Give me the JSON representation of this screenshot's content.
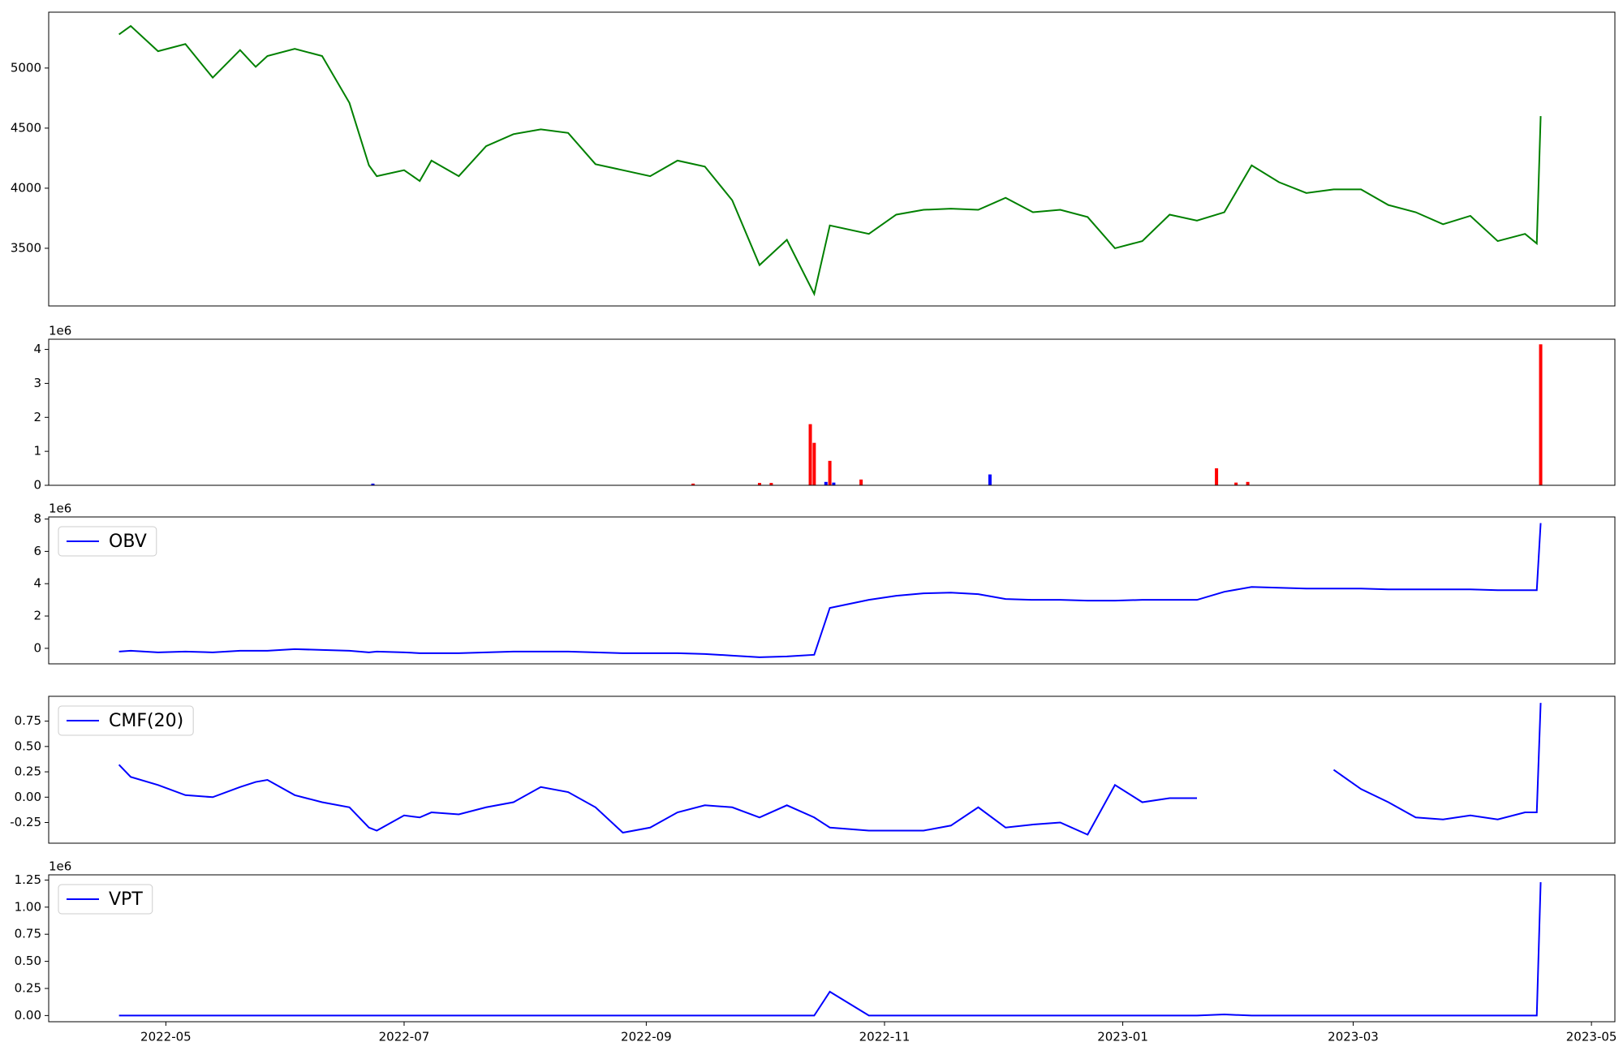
{
  "chart_data": [
    {
      "type": "line",
      "xlim": [
        "2022-04-01",
        "2023-05-07"
      ],
      "x": [
        "2022-04-19",
        "2022-04-22",
        "2022-04-29",
        "2022-05-06",
        "2022-05-13",
        "2022-05-20",
        "2022-05-24",
        "2022-05-27",
        "2022-06-03",
        "2022-06-10",
        "2022-06-17",
        "2022-06-22",
        "2022-06-24",
        "2022-07-01",
        "2022-07-05",
        "2022-07-08",
        "2022-07-15",
        "2022-07-22",
        "2022-07-29",
        "2022-08-05",
        "2022-08-12",
        "2022-08-19",
        "2022-08-26",
        "2022-09-02",
        "2022-09-09",
        "2022-09-16",
        "2022-09-23",
        "2022-09-30",
        "2022-10-07",
        "2022-10-14",
        "2022-10-18",
        "2022-10-28",
        "2022-11-04",
        "2022-11-11",
        "2022-11-18",
        "2022-11-25",
        "2022-12-02",
        "2022-12-09",
        "2022-12-16",
        "2022-12-23",
        "2022-12-30",
        "2023-01-06",
        "2023-01-13",
        "2023-01-20",
        "2023-01-27",
        "2023-02-03",
        "2023-02-10",
        "2023-02-17",
        "2023-02-24",
        "2023-03-03",
        "2023-03-10",
        "2023-03-17",
        "2023-03-24",
        "2023-03-31",
        "2023-04-07",
        "2023-04-14",
        "2023-04-17",
        "2023-04-18"
      ],
      "series": [
        {
          "color": "#008000",
          "values": [
            5280,
            5350,
            5140,
            5200,
            4920,
            5150,
            5010,
            5100,
            5160,
            5100,
            4710,
            4190,
            4100,
            4150,
            4060,
            4230,
            4100,
            4350,
            4450,
            4490,
            4460,
            4200,
            4150,
            4100,
            4230,
            4180,
            3900,
            3360,
            3570,
            3120,
            3690,
            3620,
            3780,
            3820,
            3830,
            3820,
            3920,
            3800,
            3820,
            3760,
            3500,
            3560,
            3780,
            3730,
            3800,
            4190,
            4050,
            3960,
            3990,
            3990,
            3860,
            3800,
            3700,
            3770,
            3560,
            3620,
            3540,
            4600
          ]
        }
      ],
      "ylim": [
        3020,
        5465
      ],
      "yticks": [
        3500,
        4000,
        4500,
        5000
      ]
    },
    {
      "type": "bar",
      "xlim": [
        "2022-04-01",
        "2023-05-07"
      ],
      "offset_label": "1e6",
      "x": [
        "2022-06-23",
        "2022-09-13",
        "2022-09-30",
        "2022-10-03",
        "2022-10-13",
        "2022-10-14",
        "2022-10-17",
        "2022-10-18",
        "2022-10-19",
        "2022-10-26",
        "2022-11-28",
        "2023-01-25",
        "2023-01-30",
        "2023-02-02",
        "2023-04-18"
      ],
      "values": [
        0.05,
        0.05,
        0.07,
        0.07,
        1.8,
        1.25,
        0.1,
        0.72,
        0.08,
        0.17,
        0.32,
        0.5,
        0.08,
        0.1,
        4.15
      ],
      "colors": [
        "#0000ff",
        "#ff0000",
        "#ff0000",
        "#ff0000",
        "#ff0000",
        "#ff0000",
        "#0000ff",
        "#ff0000",
        "#0000ff",
        "#ff0000",
        "#0000ff",
        "#ff0000",
        "#ff0000",
        "#ff0000",
        "#ff0000"
      ],
      "ylim": [
        0,
        4.3
      ],
      "yticks": [
        0,
        1,
        2,
        3,
        4
      ]
    },
    {
      "type": "line",
      "xlim": [
        "2022-04-01",
        "2023-05-07"
      ],
      "offset_label": "1e6",
      "legend": "upper left",
      "x": [
        "2022-04-19",
        "2022-04-22",
        "2022-04-29",
        "2022-05-06",
        "2022-05-13",
        "2022-05-20",
        "2022-05-24",
        "2022-05-27",
        "2022-06-03",
        "2022-06-10",
        "2022-06-17",
        "2022-06-22",
        "2022-06-24",
        "2022-07-01",
        "2022-07-05",
        "2022-07-08",
        "2022-07-15",
        "2022-07-22",
        "2022-07-29",
        "2022-08-05",
        "2022-08-12",
        "2022-08-19",
        "2022-08-26",
        "2022-09-02",
        "2022-09-09",
        "2022-09-16",
        "2022-09-23",
        "2022-09-30",
        "2022-10-07",
        "2022-10-14",
        "2022-10-18",
        "2022-10-28",
        "2022-11-04",
        "2022-11-11",
        "2022-11-18",
        "2022-11-25",
        "2022-12-02",
        "2022-12-09",
        "2022-12-16",
        "2022-12-23",
        "2022-12-30",
        "2023-01-06",
        "2023-01-13",
        "2023-01-20",
        "2023-01-27",
        "2023-02-03",
        "2023-02-10",
        "2023-02-17",
        "2023-02-24",
        "2023-03-03",
        "2023-03-10",
        "2023-03-17",
        "2023-03-24",
        "2023-03-31",
        "2023-04-07",
        "2023-04-14",
        "2023-04-17",
        "2023-04-18"
      ],
      "series": [
        {
          "name": "OBV",
          "color": "#0000ff",
          "values": [
            -0.2,
            -0.15,
            -0.25,
            -0.2,
            -0.25,
            -0.15,
            -0.15,
            -0.15,
            -0.05,
            -0.1,
            -0.15,
            -0.25,
            -0.2,
            -0.25,
            -0.3,
            -0.3,
            -0.3,
            -0.25,
            -0.2,
            -0.2,
            -0.2,
            -0.25,
            -0.3,
            -0.3,
            -0.3,
            -0.35,
            -0.45,
            -0.55,
            -0.5,
            -0.4,
            2.5,
            3.0,
            3.25,
            3.4,
            3.45,
            3.35,
            3.05,
            3.0,
            3.0,
            2.95,
            2.95,
            3.0,
            3.0,
            3.0,
            3.5,
            3.8,
            3.75,
            3.7,
            3.7,
            3.7,
            3.65,
            3.65,
            3.65,
            3.65,
            3.6,
            3.6,
            3.6,
            7.75
          ]
        }
      ],
      "ylim": [
        -0.96,
        8.13
      ],
      "yticks": [
        0,
        2,
        4,
        6,
        8
      ]
    },
    {
      "type": "line",
      "xlim": [
        "2022-04-01",
        "2023-05-07"
      ],
      "legend": "upper left",
      "x": [
        "2022-04-19",
        "2022-04-22",
        "2022-04-29",
        "2022-05-06",
        "2022-05-13",
        "2022-05-20",
        "2022-05-24",
        "2022-05-27",
        "2022-06-03",
        "2022-06-10",
        "2022-06-17",
        "2022-06-22",
        "2022-06-24",
        "2022-07-01",
        "2022-07-05",
        "2022-07-08",
        "2022-07-15",
        "2022-07-22",
        "2022-07-29",
        "2022-08-05",
        "2022-08-12",
        "2022-08-19",
        "2022-08-26",
        "2022-09-02",
        "2022-09-09",
        "2022-09-16",
        "2022-09-23",
        "2022-09-30",
        "2022-10-07",
        "2022-10-14",
        "2022-10-18",
        "2022-10-28",
        "2022-11-04",
        "2022-11-11",
        "2022-11-18",
        "2022-11-25",
        "2022-12-02",
        "2022-12-09",
        "2022-12-16",
        "2022-12-23",
        "2022-12-30",
        "2023-01-06",
        "2023-01-13",
        "2023-01-20",
        "2023-01-27",
        "2023-02-03",
        "2023-02-10",
        "2023-02-17",
        "2023-02-24",
        "2023-03-03",
        "2023-03-10",
        "2023-03-17",
        "2023-03-24",
        "2023-03-31",
        "2023-04-07",
        "2023-04-14",
        "2023-04-17",
        "2023-04-18"
      ],
      "series": [
        {
          "name": "CMF(20)",
          "color": "#0000ff",
          "values": [
            0.32,
            0.2,
            0.12,
            0.02,
            0.0,
            0.1,
            0.15,
            0.17,
            0.02,
            -0.05,
            -0.1,
            -0.3,
            -0.33,
            -0.18,
            -0.2,
            -0.15,
            -0.17,
            -0.1,
            -0.05,
            0.1,
            0.05,
            -0.1,
            -0.35,
            -0.3,
            -0.15,
            -0.08,
            -0.1,
            -0.2,
            -0.08,
            -0.2,
            -0.3,
            -0.33,
            -0.33,
            -0.33,
            -0.28,
            -0.1,
            -0.3,
            -0.27,
            -0.25,
            -0.37,
            0.12,
            -0.05,
            -0.01,
            -0.01,
            null,
            null,
            null,
            null,
            0.27,
            0.08,
            -0.05,
            -0.2,
            -0.22,
            -0.18,
            -0.22,
            -0.15,
            -0.15,
            0.93
          ]
        }
      ],
      "ylim": [
        -0.454,
        0.995
      ],
      "yticks": [
        {
          "value": -0.25,
          "label": "-0.25"
        },
        {
          "value": 0,
          "label": "0.00"
        },
        {
          "value": 0.25,
          "label": "0.25"
        },
        {
          "value": 0.5,
          "label": "0.50"
        },
        {
          "value": 0.75,
          "label": "0.75"
        }
      ]
    },
    {
      "type": "line",
      "xlim": [
        "2022-04-01",
        "2023-05-07"
      ],
      "offset_label": "1e6",
      "legend": "upper left",
      "x": [
        "2022-04-19",
        "2022-04-22",
        "2022-04-29",
        "2022-05-06",
        "2022-05-13",
        "2022-05-20",
        "2022-05-24",
        "2022-05-27",
        "2022-06-03",
        "2022-06-10",
        "2022-06-17",
        "2022-06-22",
        "2022-06-24",
        "2022-07-01",
        "2022-07-05",
        "2022-07-08",
        "2022-07-15",
        "2022-07-22",
        "2022-07-29",
        "2022-08-05",
        "2022-08-12",
        "2022-08-19",
        "2022-08-26",
        "2022-09-02",
        "2022-09-09",
        "2022-09-16",
        "2022-09-23",
        "2022-09-30",
        "2022-10-07",
        "2022-10-14",
        "2022-10-18",
        "2022-10-28",
        "2022-11-04",
        "2022-11-11",
        "2022-11-18",
        "2022-11-25",
        "2022-12-02",
        "2022-12-09",
        "2022-12-16",
        "2022-12-23",
        "2022-12-30",
        "2023-01-06",
        "2023-01-13",
        "2023-01-20",
        "2023-01-27",
        "2023-02-03",
        "2023-02-10",
        "2023-02-17",
        "2023-02-24",
        "2023-03-03",
        "2023-03-10",
        "2023-03-17",
        "2023-03-24",
        "2023-03-31",
        "2023-04-07",
        "2023-04-14",
        "2023-04-17",
        "2023-04-18"
      ],
      "series": [
        {
          "name": "VPT",
          "color": "#0000ff",
          "values": [
            0,
            0,
            0,
            0,
            0,
            0,
            0,
            0,
            0,
            0,
            0,
            0,
            0,
            0,
            0,
            0,
            0,
            0,
            0,
            0,
            0,
            0,
            0,
            0,
            0,
            0,
            0,
            0,
            0,
            0,
            0.22,
            0,
            0,
            0,
            0,
            0,
            0,
            0,
            0,
            0,
            0,
            0,
            0,
            0,
            0.01,
            0,
            0,
            0,
            0,
            0,
            0,
            0,
            0,
            0,
            0,
            0,
            0,
            1.23
          ]
        }
      ],
      "ylim": [
        -0.057,
        1.298
      ],
      "yticks": [
        {
          "value": 0,
          "label": "0.00"
        },
        {
          "value": 0.25,
          "label": "0.25"
        },
        {
          "value": 0.5,
          "label": "0.50"
        },
        {
          "value": 0.75,
          "label": "0.75"
        },
        {
          "value": 1,
          "label": "1.00"
        },
        {
          "value": 1.25,
          "label": "1.25"
        }
      ],
      "xticks": [
        "2022-05",
        "2022-07",
        "2022-09",
        "2022-11",
        "2023-01",
        "2023-03",
        "2023-05"
      ]
    }
  ]
}
